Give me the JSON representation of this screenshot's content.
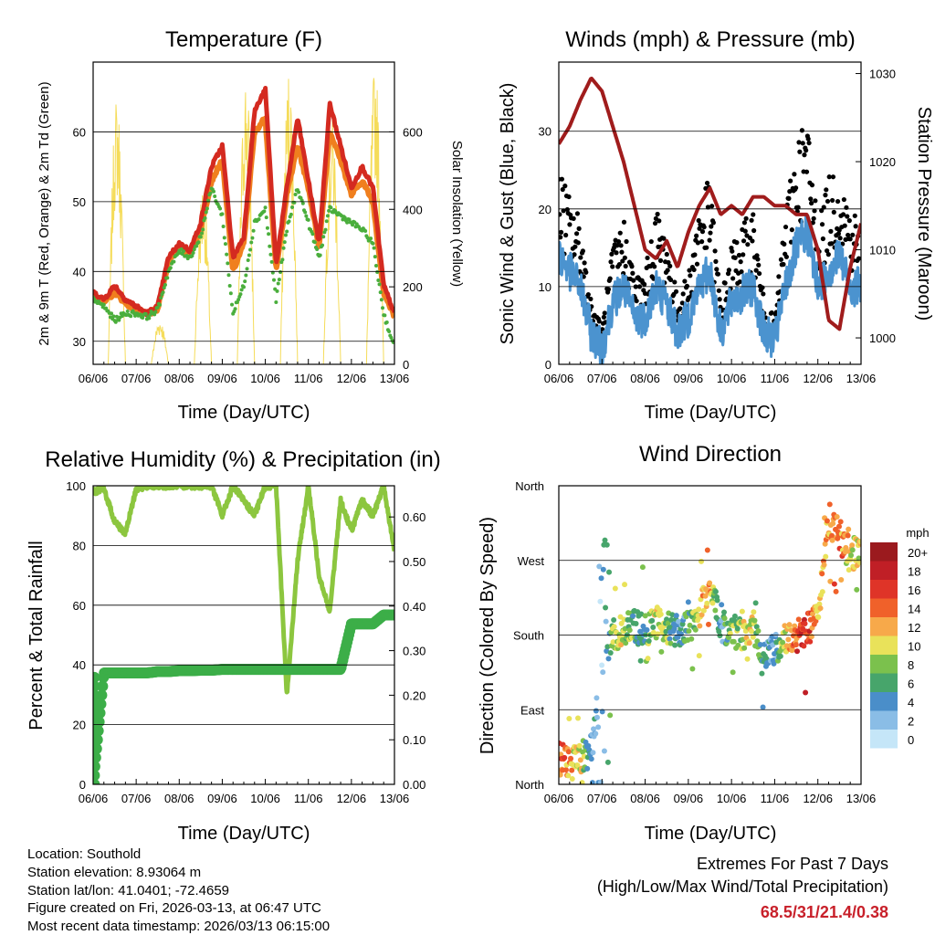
{
  "x_ticks": [
    "06/06",
    "07/06",
    "08/06",
    "09/06",
    "10/06",
    "11/06",
    "12/06",
    "13/06"
  ],
  "chart_data": [
    {
      "type": "line",
      "title": "Temperature (F)",
      "xlabel": "Time (Day/UTC)",
      "ylabel": "2m & 9m T (Red, Orange) & 2m Td (Green)",
      "ylabel_right": "Solar Insolation (Yellow)",
      "ylim": [
        26.7,
        70
      ],
      "ylim_right": [
        0,
        780
      ],
      "yticks": [
        30,
        40,
        50,
        60
      ],
      "yticks_right": [
        0,
        200,
        400,
        600
      ],
      "x_step_days": 0.25,
      "series": [
        {
          "name": "2m T",
          "color": "#d42a20",
          "values": [
            37,
            36,
            38,
            36,
            35,
            34,
            35,
            42,
            44,
            43,
            47,
            55,
            58,
            42,
            45,
            63,
            66,
            41,
            52,
            62,
            53,
            44,
            64,
            58,
            52,
            55,
            52,
            38,
            34
          ]
        },
        {
          "name": "9m T",
          "color": "#f07f1e",
          "values": [
            36.5,
            35.5,
            37,
            35.5,
            34.5,
            33.8,
            34.6,
            41.5,
            43.5,
            42.5,
            46,
            53,
            56,
            40,
            44,
            60,
            62,
            40,
            51,
            58,
            52,
            43.5,
            60,
            56,
            51,
            53,
            50,
            37,
            33.5
          ]
        },
        {
          "name": "2m Td",
          "color": "#4aae3c",
          "values": [
            36,
            35,
            33,
            34,
            34,
            33.5,
            34.5,
            40,
            43,
            42,
            45,
            52,
            48,
            34,
            38,
            47,
            49,
            36,
            46,
            52,
            47,
            42,
            49,
            48,
            47,
            46,
            44,
            34,
            29
          ]
        }
      ],
      "solar_daily_peaks": [
        700,
        120,
        470,
        760,
        770,
        650,
        780,
        420
      ]
    },
    {
      "type": "line",
      "title": "Winds (mph) & Pressure (mb)",
      "xlabel": "Time (Day/UTC)",
      "ylabel": "Sonic Wind & Gust (Blue, Black)",
      "ylabel_right": "Station Pressure (Maroon)",
      "ylim": [
        0,
        38.9
      ],
      "ylim_right": [
        997,
        1031.3
      ],
      "yticks": [
        0,
        10,
        20,
        30
      ],
      "yticks_right": [
        1000,
        1010,
        1020,
        1030
      ],
      "x_step_days": 0.25,
      "series": [
        {
          "name": "Sonic Wind",
          "color": "#4b93cf",
          "values": [
            14,
            12,
            10,
            4,
            2,
            8,
            10,
            6,
            6,
            10,
            8,
            4,
            6,
            10,
            12,
            4,
            8,
            9,
            10,
            4,
            3,
            10,
            15,
            17,
            10,
            12,
            14,
            10,
            10
          ]
        },
        {
          "name": "Gust",
          "color": "#000000",
          "values": [
            22,
            18,
            16,
            7,
            4,
            13,
            16,
            10,
            10,
            17,
            14,
            7,
            10,
            18,
            20,
            7,
            13,
            15,
            17,
            7,
            5,
            17,
            25,
            27,
            16,
            20,
            22,
            17,
            16
          ]
        },
        {
          "name": "Station Pressure",
          "color": "#a01c1c",
          "values": [
            1022,
            1024,
            1027,
            1029.5,
            1028,
            1024,
            1020,
            1015,
            1010,
            1009,
            1011,
            1008,
            1012,
            1015,
            1017,
            1014,
            1015,
            1014,
            1016,
            1016,
            1015,
            1015,
            1014,
            1014,
            1010,
            1002,
            1001,
            1008,
            1013
          ]
        }
      ]
    },
    {
      "type": "line",
      "title": "Relative Humidity (%) & Precipitation (in)",
      "xlabel": "Time (Day/UTC)",
      "ylabel": "Percent & Total Rainfall",
      "ylim": [
        0,
        100
      ],
      "ylim_right": [
        0,
        0.67
      ],
      "yticks": [
        0,
        20,
        40,
        60,
        80,
        100
      ],
      "yticks_right": [
        "0.00",
        "0.10",
        "0.20",
        "0.30",
        "0.40",
        "0.50",
        "0.60"
      ],
      "x_step_days": 0.25,
      "series": [
        {
          "name": "Relative Humidity",
          "color": "#8cc63f",
          "values": [
            98,
            99,
            88,
            84,
            99,
            100,
            100,
            100,
            100,
            100,
            100,
            100,
            90,
            100,
            95,
            90,
            100,
            100,
            30,
            75,
            100,
            70,
            58,
            95,
            85,
            95,
            90,
            100,
            78
          ]
        },
        {
          "name": "Total Precipitation",
          "color": "#3cae48",
          "values": [
            0,
            0.25,
            0.25,
            0.25,
            0.25,
            0.25,
            0.253,
            0.253,
            0.255,
            0.255,
            0.256,
            0.256,
            0.258,
            0.258,
            0.258,
            0.258,
            0.258,
            0.258,
            0.258,
            0.258,
            0.258,
            0.258,
            0.258,
            0.258,
            0.36,
            0.36,
            0.36,
            0.38,
            0.38
          ]
        }
      ]
    },
    {
      "type": "scatter",
      "title": "Wind Direction",
      "xlabel": "Time (Day/UTC)",
      "ylabel": "Direction (Colored By Speed)",
      "ylim": [
        0,
        360
      ],
      "yticks": [
        "North",
        "East",
        "South",
        "West",
        "North"
      ],
      "x_step_days": 0.25,
      "direction_trend": [
        30,
        25,
        30,
        40,
        140,
        180,
        185,
        190,
        185,
        195,
        190,
        185,
        190,
        200,
        250,
        190,
        185,
        180,
        190,
        160,
        160,
        175,
        180,
        185,
        200,
        320,
        300,
        275,
        285
      ],
      "legend": {
        "title": "mph",
        "labels": [
          "20+",
          "18",
          "16",
          "14",
          "12",
          "10",
          "8",
          "6",
          "4",
          "2",
          "0"
        ],
        "colors": [
          "#9b1a1e",
          "#c01f26",
          "#df3428",
          "#f0612a",
          "#f7a94a",
          "#e9e25a",
          "#7bc14d",
          "#47a56b",
          "#4a8ec9",
          "#8abde6",
          "#c5e6f8"
        ]
      }
    }
  ],
  "info": {
    "location": "Location: Southold",
    "elevation": "Station elevation: 8.93064 m",
    "latlon": "Station lat/lon: 41.0401; -72.4659",
    "created": "Figure created on Fri, 2026-03-13, at 06:47 UTC",
    "recent": "Most recent data timestamp: 2026/03/13 06:15:00"
  },
  "extremes": {
    "title": "Extremes For Past 7 Days",
    "subtitle": "(High/Low/Max Wind/Total Precipitation)",
    "values": "68.5/31/21.4/0.38"
  }
}
